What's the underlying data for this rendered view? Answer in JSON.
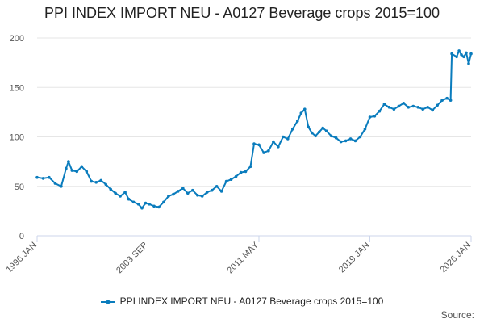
{
  "title": "PPI INDEX IMPORT NEU - A0127 Beverage crops 2015=100",
  "source_label": "Source:",
  "colors": {
    "series": "#0a7cbd",
    "grid": "#e6e6e6",
    "axis": "#ccd6eb"
  },
  "chart_data": {
    "type": "line",
    "x_tick_labels": [
      "1996 JAN",
      "2003 SEP",
      "2011 MAY",
      "2019 JAN",
      "2026 JAN"
    ],
    "x_tick_months": [
      "1996-01",
      "2003-09",
      "2011-05",
      "2019-01",
      "2026-01"
    ],
    "y_ticks": [
      0,
      50,
      100,
      150,
      200
    ],
    "ylim": [
      0,
      200
    ],
    "xlim": [
      "1996-01",
      "2026-01"
    ],
    "grid": true,
    "legend_position": "bottom",
    "series": [
      {
        "name": "PPI INDEX IMPORT NEU - A0127 Beverage crops 2015=100",
        "points": [
          [
            "1996-01",
            59
          ],
          [
            "1996-06",
            58
          ],
          [
            "1996-11",
            59
          ],
          [
            "1997-04",
            53
          ],
          [
            "1997-09",
            50
          ],
          [
            "1998-01",
            68
          ],
          [
            "1998-03",
            75
          ],
          [
            "1998-06",
            66
          ],
          [
            "1998-10",
            65
          ],
          [
            "1999-02",
            70
          ],
          [
            "1999-06",
            65
          ],
          [
            "1999-10",
            55
          ],
          [
            "2000-02",
            54
          ],
          [
            "2000-06",
            56
          ],
          [
            "2000-10",
            52
          ],
          [
            "2001-02",
            47
          ],
          [
            "2001-06",
            43
          ],
          [
            "2001-10",
            40
          ],
          [
            "2002-02",
            44
          ],
          [
            "2002-05",
            37
          ],
          [
            "2002-09",
            34
          ],
          [
            "2003-01",
            32
          ],
          [
            "2003-04",
            28
          ],
          [
            "2003-07",
            33
          ],
          [
            "2003-10",
            32
          ],
          [
            "2004-02",
            30
          ],
          [
            "2004-06",
            29
          ],
          [
            "2004-10",
            34
          ],
          [
            "2005-02",
            40
          ],
          [
            "2005-06",
            42
          ],
          [
            "2005-10",
            45
          ],
          [
            "2006-02",
            48
          ],
          [
            "2006-06",
            43
          ],
          [
            "2006-10",
            46
          ],
          [
            "2007-02",
            41
          ],
          [
            "2007-06",
            40
          ],
          [
            "2007-10",
            44
          ],
          [
            "2008-02",
            46
          ],
          [
            "2008-06",
            50
          ],
          [
            "2008-10",
            45
          ],
          [
            "2009-02",
            55
          ],
          [
            "2009-06",
            57
          ],
          [
            "2009-10",
            60
          ],
          [
            "2010-02",
            64
          ],
          [
            "2010-06",
            65
          ],
          [
            "2010-10",
            70
          ],
          [
            "2011-01",
            93
          ],
          [
            "2011-05",
            92
          ],
          [
            "2011-09",
            84
          ],
          [
            "2012-01",
            86
          ],
          [
            "2012-05",
            95
          ],
          [
            "2012-09",
            90
          ],
          [
            "2013-01",
            100
          ],
          [
            "2013-05",
            98
          ],
          [
            "2013-09",
            108
          ],
          [
            "2014-01",
            116
          ],
          [
            "2014-04",
            124
          ],
          [
            "2014-07",
            128
          ],
          [
            "2014-10",
            110
          ],
          [
            "2015-01",
            104
          ],
          [
            "2015-04",
            101
          ],
          [
            "2015-07",
            105
          ],
          [
            "2015-10",
            109
          ],
          [
            "2016-01",
            106
          ],
          [
            "2016-05",
            101
          ],
          [
            "2016-09",
            99
          ],
          [
            "2017-01",
            95
          ],
          [
            "2017-05",
            96
          ],
          [
            "2017-09",
            98
          ],
          [
            "2018-01",
            96
          ],
          [
            "2018-05",
            100
          ],
          [
            "2018-09",
            108
          ],
          [
            "2019-01",
            120
          ],
          [
            "2019-05",
            121
          ],
          [
            "2019-09",
            126
          ],
          [
            "2020-01",
            133
          ],
          [
            "2020-05",
            130
          ],
          [
            "2020-09",
            128
          ],
          [
            "2021-01",
            131
          ],
          [
            "2021-05",
            134
          ],
          [
            "2021-09",
            130
          ],
          [
            "2022-01",
            131
          ],
          [
            "2022-05",
            130
          ],
          [
            "2022-09",
            128
          ],
          [
            "2023-01",
            130
          ],
          [
            "2023-05",
            127
          ],
          [
            "2023-09",
            132
          ],
          [
            "2024-01",
            137
          ],
          [
            "2024-05",
            139
          ],
          [
            "2024-08",
            137
          ],
          [
            "2024-09",
            184
          ],
          [
            "2025-01",
            181
          ],
          [
            "2025-03",
            187
          ],
          [
            "2025-05",
            183
          ],
          [
            "2025-07",
            181
          ],
          [
            "2025-09",
            185
          ],
          [
            "2025-11",
            174
          ],
          [
            "2026-01",
            184
          ]
        ]
      }
    ]
  }
}
